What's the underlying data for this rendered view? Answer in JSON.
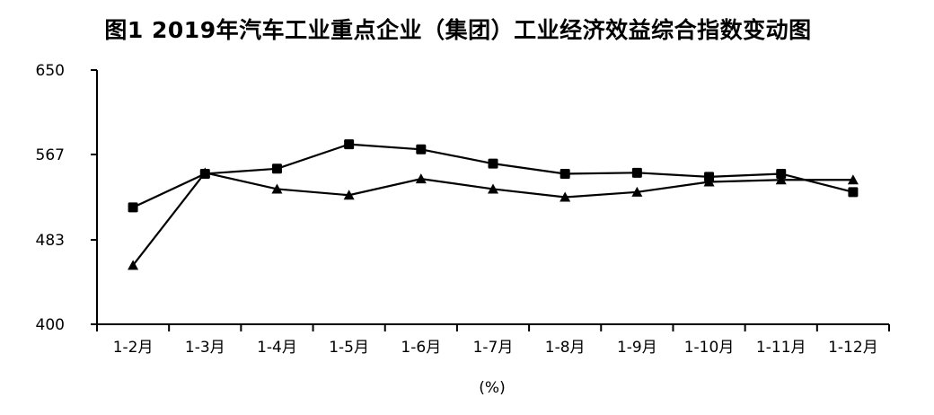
{
  "chart_data": {
    "type": "line",
    "title": "图1  2019年汽车工业重点企业（集团）工业经济效益综合指数变动图",
    "xlabel": "(%)",
    "ylabel": "",
    "categories": [
      "1-2月",
      "1-3月",
      "1-4月",
      "1-5月",
      "1-6月",
      "1-7月",
      "1-8月",
      "1-9月",
      "1-10月",
      "1-11月",
      "1-12月"
    ],
    "ylim": [
      400,
      650
    ],
    "yticks": [
      "650",
      "567",
      "483",
      "400"
    ],
    "series": [
      {
        "marker": "square",
        "values": [
          515,
          548,
          553,
          577,
          572,
          558,
          548,
          549,
          545,
          548,
          530
        ]
      },
      {
        "marker": "triangle",
        "values": [
          458,
          549,
          533,
          527,
          543,
          533,
          525,
          530,
          540,
          542,
          542
        ]
      }
    ],
    "grid": false,
    "legend": "none"
  }
}
